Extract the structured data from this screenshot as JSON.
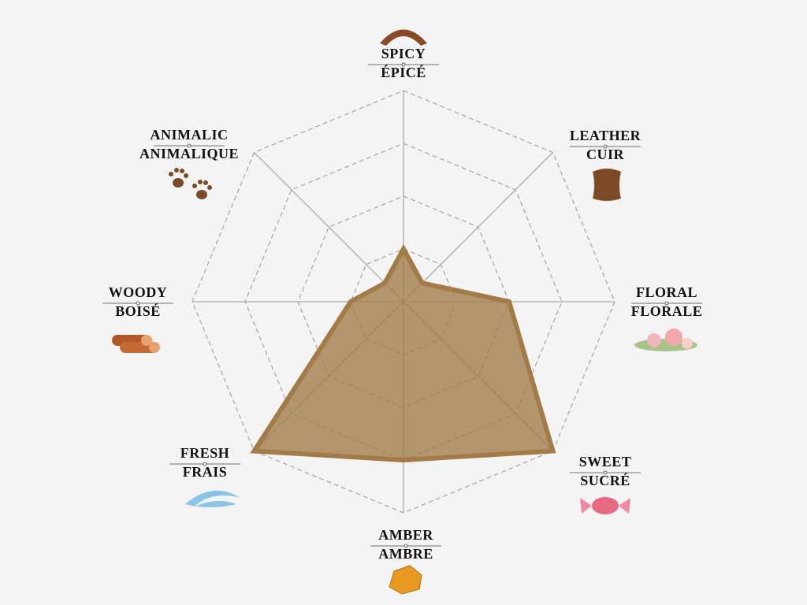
{
  "chart_data": {
    "type": "radar",
    "categories": [
      "SPICY",
      "LEATHER",
      "FLORAL",
      "SWEET",
      "AMBER",
      "FRESH",
      "WOODY",
      "ANIMALIC"
    ],
    "translations": [
      "ÉPICÉ",
      "CUIR",
      "FLORALE",
      "SUCRÉ",
      "AMBRE",
      "FRAIS",
      "BOISÉ",
      "ANIMALIQUE"
    ],
    "values": [
      1,
      0.5,
      2,
      4,
      3,
      4,
      1,
      0.5
    ],
    "rlim": [
      0,
      4
    ],
    "rticks": [
      1,
      2,
      3,
      4
    ],
    "color": "#a27b48",
    "grid": true
  }
}
